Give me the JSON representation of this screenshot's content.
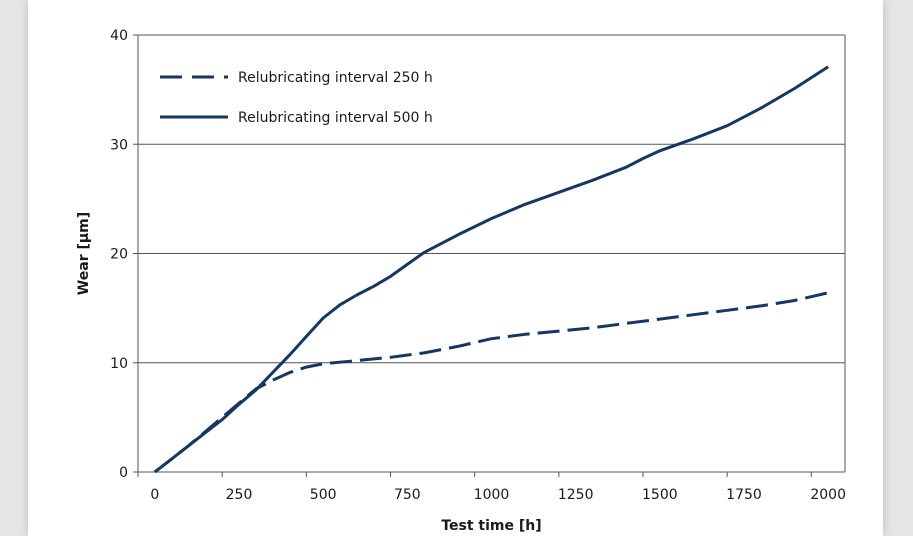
{
  "chart_data": {
    "type": "line",
    "xlabel": "Test time [h]",
    "ylabel": "Wear [µm]",
    "xlim": [
      -50,
      2050
    ],
    "ylim": [
      0,
      40
    ],
    "x_ticks": [
      0,
      250,
      500,
      750,
      1000,
      1250,
      1500,
      1750,
      2000
    ],
    "y_ticks": [
      0,
      10,
      20,
      30,
      40
    ],
    "grid": "horizontal",
    "legend_position": "top-left",
    "colors": {
      "line": "#16375e",
      "grid": "#555555",
      "axis": "#555555"
    },
    "series": [
      {
        "name": "Relubricating interval 250 h",
        "style": "dashed",
        "x": [
          0,
          50,
          100,
          150,
          200,
          250,
          300,
          350,
          400,
          450,
          500,
          600,
          700,
          800,
          900,
          1000,
          1100,
          1200,
          1300,
          1400,
          1500,
          1600,
          1700,
          1800,
          1900,
          2000
        ],
        "y": [
          0,
          1.2,
          2.4,
          3.7,
          5.0,
          6.3,
          7.6,
          8.4,
          9.1,
          9.6,
          9.9,
          10.2,
          10.5,
          10.9,
          11.5,
          12.2,
          12.6,
          12.9,
          13.2,
          13.6,
          14.0,
          14.4,
          14.8,
          15.2,
          15.7,
          16.4
        ]
      },
      {
        "name": "Relubricating interval 500 h",
        "style": "solid",
        "x": [
          0,
          50,
          100,
          150,
          200,
          250,
          300,
          350,
          400,
          450,
          500,
          550,
          600,
          650,
          700,
          750,
          800,
          900,
          1000,
          1100,
          1200,
          1300,
          1400,
          1450,
          1500,
          1600,
          1700,
          1800,
          1900,
          2000
        ],
        "y": [
          0,
          1.2,
          2.4,
          3.6,
          4.8,
          6.2,
          7.5,
          9.1,
          10.7,
          12.4,
          14.1,
          15.3,
          16.2,
          17.0,
          17.9,
          19.0,
          20.1,
          21.7,
          23.2,
          24.5,
          25.6,
          26.7,
          27.9,
          28.7,
          29.4,
          30.5,
          31.7,
          33.3,
          35.1,
          37.1
        ]
      }
    ]
  }
}
